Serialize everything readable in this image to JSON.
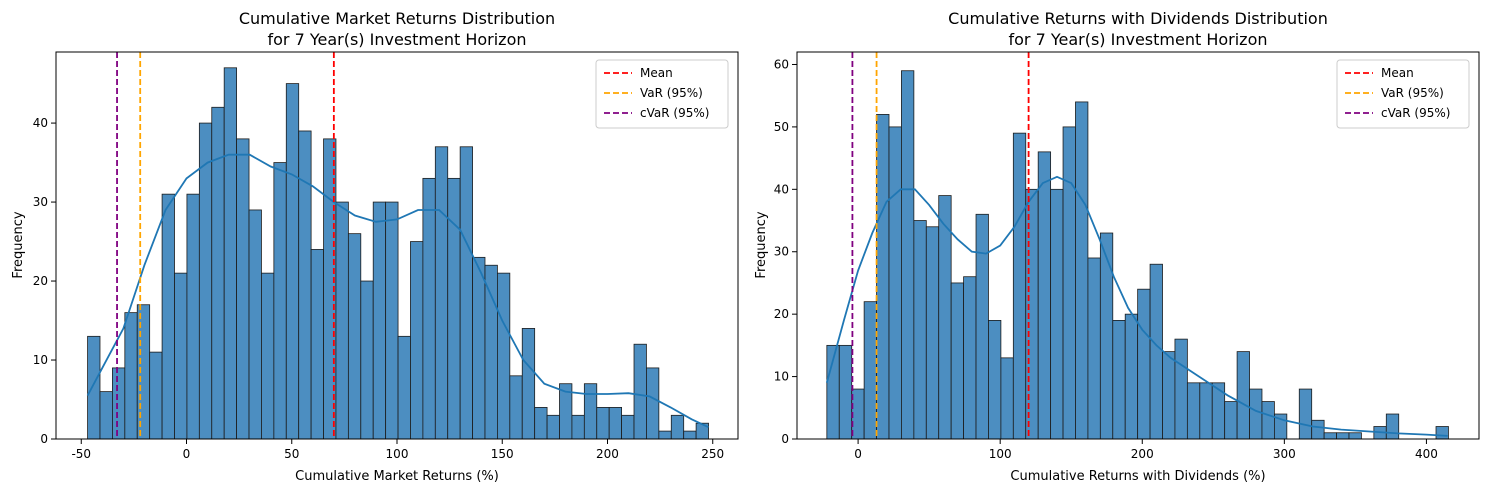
{
  "chart_data": [
    {
      "type": "bar",
      "title": [
        "Cumulative Market Returns Distribution",
        "for 7 Year(s) Investment Horizon"
      ],
      "xlabel": "Cumulative Market Returns (%)",
      "ylabel": "Frequency",
      "xlim": [
        -62,
        262
      ],
      "ylim": [
        0,
        49
      ],
      "xticks": [
        -50,
        0,
        50,
        100,
        150,
        200,
        250
      ],
      "yticks": [
        0,
        10,
        20,
        30,
        40
      ],
      "bin_start": -47,
      "bin_width": 5.9,
      "counts": [
        13,
        6,
        9,
        16,
        17,
        11,
        31,
        21,
        31,
        40,
        42,
        47,
        38,
        29,
        21,
        35,
        45,
        39,
        24,
        38,
        30,
        26,
        20,
        30,
        30,
        13,
        25,
        33,
        37,
        33,
        37,
        23,
        22,
        21,
        8,
        14,
        4,
        3,
        7,
        3,
        7,
        4,
        4,
        3,
        12,
        9,
        1,
        3,
        1,
        2
      ],
      "kde": [
        [
          -47,
          5.5
        ],
        [
          -40,
          9
        ],
        [
          -30,
          14
        ],
        [
          -20,
          22
        ],
        [
          -10,
          29
        ],
        [
          0,
          33
        ],
        [
          10,
          35
        ],
        [
          20,
          36
        ],
        [
          30,
          36
        ],
        [
          40,
          34.5
        ],
        [
          50,
          33.5
        ],
        [
          60,
          32
        ],
        [
          70,
          30
        ],
        [
          80,
          28.3
        ],
        [
          90,
          27.5
        ],
        [
          100,
          27.8
        ],
        [
          110,
          29
        ],
        [
          120,
          29
        ],
        [
          130,
          26.5
        ],
        [
          140,
          21
        ],
        [
          150,
          15
        ],
        [
          160,
          10
        ],
        [
          170,
          7
        ],
        [
          180,
          6
        ],
        [
          190,
          5.7
        ],
        [
          200,
          5.7
        ],
        [
          210,
          5.8
        ],
        [
          220,
          5.4
        ],
        [
          230,
          4
        ],
        [
          240,
          2.5
        ],
        [
          248,
          1.5
        ]
      ],
      "vlines": [
        {
          "name": "Mean",
          "x": 70,
          "color": "#ff0000"
        },
        {
          "name": "VaR (95%)",
          "x": -22,
          "color": "#ffa500"
        },
        {
          "name": "cVaR (95%)",
          "x": -33,
          "color": "#800080"
        }
      ],
      "legend": "top-right",
      "grid": false
    },
    {
      "type": "bar",
      "title": [
        "Cumulative Returns with Dividends Distribution",
        "for 7 Year(s) Investment Horizon"
      ],
      "xlabel": "Cumulative Returns with Dividends (%)",
      "ylabel": "Frequency",
      "xlim": [
        -43,
        437
      ],
      "ylim": [
        0,
        62
      ],
      "xticks": [
        0,
        100,
        200,
        300,
        400
      ],
      "yticks": [
        0,
        10,
        20,
        30,
        40,
        50,
        60
      ],
      "bin_start": -22,
      "bin_width": 8.75,
      "counts": [
        15,
        15,
        8,
        22,
        52,
        50,
        59,
        35,
        34,
        39,
        25,
        26,
        36,
        19,
        13,
        49,
        40,
        46,
        40,
        50,
        54,
        29,
        33,
        19,
        20,
        24,
        28,
        14,
        16,
        9,
        9,
        9,
        6,
        14,
        8,
        6,
        4,
        0,
        8,
        3,
        1,
        1,
        1,
        0,
        2,
        4,
        0,
        0,
        0,
        2
      ],
      "kde": [
        [
          -22,
          9
        ],
        [
          -10,
          19
        ],
        [
          0,
          27
        ],
        [
          10,
          33
        ],
        [
          20,
          38
        ],
        [
          30,
          40
        ],
        [
          40,
          40
        ],
        [
          50,
          37.5
        ],
        [
          60,
          34.5
        ],
        [
          70,
          32
        ],
        [
          80,
          30
        ],
        [
          90,
          29.7
        ],
        [
          100,
          31
        ],
        [
          110,
          34
        ],
        [
          120,
          38
        ],
        [
          130,
          41
        ],
        [
          140,
          42
        ],
        [
          150,
          41
        ],
        [
          160,
          37.5
        ],
        [
          170,
          32
        ],
        [
          180,
          26
        ],
        [
          190,
          21
        ],
        [
          200,
          17.5
        ],
        [
          210,
          15
        ],
        [
          220,
          13
        ],
        [
          240,
          10
        ],
        [
          260,
          7
        ],
        [
          280,
          4.5
        ],
        [
          300,
          3
        ],
        [
          320,
          2
        ],
        [
          340,
          1.5
        ],
        [
          360,
          1.2
        ],
        [
          380,
          0.9
        ],
        [
          400,
          0.7
        ],
        [
          415,
          0.5
        ]
      ],
      "vlines": [
        {
          "name": "Mean",
          "x": 120,
          "color": "#ff0000"
        },
        {
          "name": "VaR (95%)",
          "x": 13,
          "color": "#ffa500"
        },
        {
          "name": "cVaR (95%)",
          "x": -4,
          "color": "#800080"
        }
      ],
      "legend": "top-right",
      "grid": false
    }
  ],
  "colors": {
    "bar_fill": "#4c8ec1",
    "bar_edge": "#1c1c1c",
    "kde_line": "#1f77b4"
  }
}
